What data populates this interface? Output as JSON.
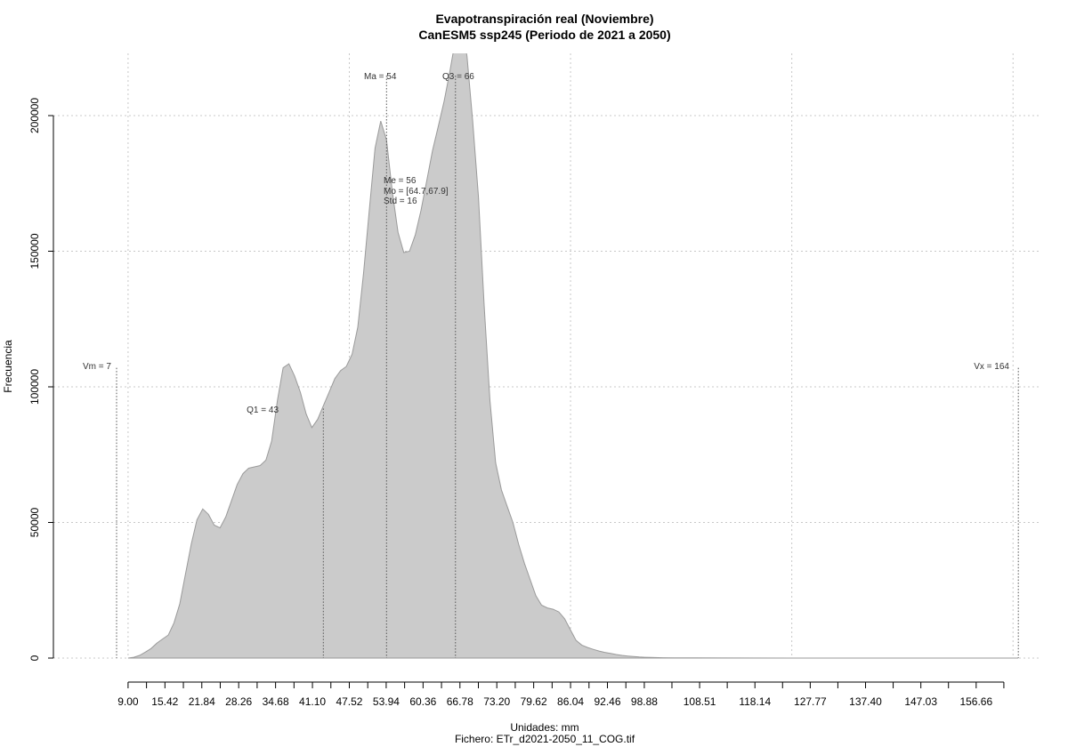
{
  "chart_data": {
    "type": "area",
    "title": "Evapotranspiración real (Noviembre)",
    "subtitle": "CanESM5 ssp245 (Periodo de 2021 a 2050)",
    "xlabel": "Unidades: mm",
    "ylabel": "Frecuencia",
    "caption": "Fichero: ETr_d2021-2050_11_COG.tif",
    "grid": true,
    "xlim": [
      -4,
      168
    ],
    "ylim": [
      0,
      200000
    ],
    "x_tick_labels": [
      "9.00",
      "15.42",
      "21.84",
      "28.26",
      "34.68",
      "41.10",
      "47.52",
      "53.94",
      "60.36",
      "66.78",
      "73.20",
      "79.62",
      "86.04",
      "92.46",
      "98.88",
      "108.51",
      "118.14",
      "127.77",
      "137.40",
      "147.03",
      "156.66"
    ],
    "x_minor_ticks": [
      9.0,
      12.21,
      15.42,
      18.63,
      21.84,
      25.05,
      28.26,
      31.47,
      34.68,
      37.89,
      41.1,
      44.31,
      47.52,
      50.73,
      53.94,
      57.15,
      60.36,
      63.57,
      66.78,
      69.99,
      73.2,
      76.41,
      79.62,
      82.83,
      86.04,
      89.25,
      92.46,
      95.67,
      98.88,
      103.69,
      108.51,
      113.32,
      118.14,
      122.95,
      127.77,
      132.58,
      137.4,
      142.21,
      147.03,
      151.84,
      156.66,
      161.48
    ],
    "y_tick_labels": [
      "0",
      "50000",
      "100000",
      "150000",
      "200000"
    ],
    "y_ticks": [
      0,
      50000,
      100000,
      150000,
      200000
    ],
    "x_grid": [
      9,
      47.52,
      86.04,
      124.56,
      163.08
    ],
    "series": [
      {
        "x": [
          9,
          10,
          11,
          12,
          13,
          14,
          15,
          16,
          17,
          18,
          19,
          20,
          21,
          22,
          23,
          24,
          25,
          26,
          27,
          28,
          29,
          30,
          31,
          32,
          33,
          34,
          35,
          36,
          37,
          38,
          39,
          40,
          41,
          42,
          43,
          44,
          45,
          46,
          47,
          48,
          49,
          50,
          51,
          52,
          53,
          54,
          55,
          56,
          57,
          58,
          59,
          60,
          61,
          62,
          63,
          64,
          65,
          66,
          67,
          68,
          69,
          70,
          71,
          72,
          73,
          74,
          75,
          76,
          77,
          78,
          79,
          80,
          81,
          82,
          83,
          84,
          85,
          86,
          87,
          88,
          89,
          90,
          91,
          92,
          93,
          94,
          95,
          96,
          97,
          98,
          99,
          100,
          102,
          104,
          108,
          115,
          125,
          135,
          145,
          155,
          164
        ],
        "y": [
          0,
          300,
          1000,
          2200,
          3500,
          5500,
          7000,
          8500,
          13000,
          20000,
          31000,
          42000,
          51000,
          55000,
          53000,
          49000,
          48000,
          52000,
          58000,
          64000,
          68000,
          70000,
          70500,
          71000,
          73000,
          80000,
          95000,
          107000,
          108500,
          104000,
          98000,
          90000,
          85000,
          88000,
          93000,
          98000,
          103000,
          106000,
          107500,
          112000,
          122000,
          142000,
          165000,
          188000,
          198000,
          191000,
          172000,
          157000,
          149500,
          150000,
          156000,
          165000,
          176000,
          187000,
          196000,
          205000,
          216000,
          228000,
          233000,
          222000,
          198000,
          170000,
          130000,
          95000,
          72000,
          62000,
          56000,
          50000,
          42000,
          35000,
          29000,
          23000,
          19500,
          18500,
          18000,
          17000,
          14500,
          10500,
          6500,
          4800,
          3900,
          3200,
          2600,
          2100,
          1700,
          1300,
          1000,
          750,
          550,
          400,
          300,
          220,
          130,
          80,
          50,
          30,
          15,
          10,
          5,
          0,
          0
        ]
      }
    ],
    "annotations": {
      "vm": "Vm = 7",
      "vx": "Vx = 164",
      "q1": "Q1 = 43",
      "ma": "Ma = 54",
      "q3": "Q3 = 66",
      "stats": [
        "Me = 56",
        "Mo = [64.7,67.9]",
        "Std = 16"
      ]
    },
    "markers": {
      "vm": {
        "x": 7,
        "y": 107000
      },
      "vx": {
        "x": 164,
        "y": 107000
      },
      "q1": {
        "x": 43,
        "y": 92000
      },
      "ma": {
        "x": 54,
        "y": 215000
      },
      "q3": {
        "x": 66,
        "y": 215000
      }
    },
    "colors": {
      "fill": "#CBCBCB",
      "stroke": "#9A9A9A",
      "grid": "#C8C8C8",
      "marker": "#555555"
    }
  }
}
